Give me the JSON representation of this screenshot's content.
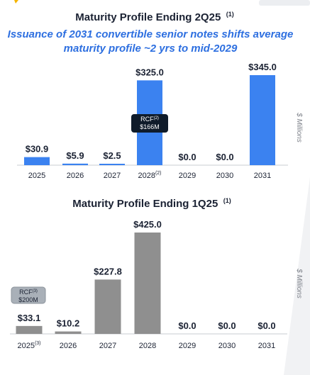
{
  "colors": {
    "bar_2q25": "#3b82f0",
    "bar_1q25": "#8f8f8f",
    "subtitle": "#2d6fe0",
    "rcf_box_dark": "#0f1b2a",
    "rcf_box_light": "#a9b0b8",
    "accent_corner": "#f5b400"
  },
  "chart_data": [
    {
      "type": "bar",
      "title": "Maturity Profile Ending 2Q25",
      "title_footnote": "(1)",
      "subtitle": "Issuance of 2031 convertible senior notes shifts average maturity profile ~2 yrs to mid-2029",
      "ylabel": "$ Millions",
      "categories": [
        "2025",
        "2026",
        "2027",
        "2028",
        "2029",
        "2030",
        "2031"
      ],
      "category_footnotes": {
        "2028": "(2)"
      },
      "values": [
        30.9,
        5.9,
        2.5,
        325.0,
        0.0,
        0.0,
        345.0
      ],
      "value_labels": [
        "$30.9",
        "$5.9",
        "$2.5",
        "$325.0",
        "$0.0",
        "$0.0",
        "$345.0"
      ],
      "ylim": [
        0,
        345
      ],
      "grid": false,
      "annotation": {
        "category": "2028",
        "label": "RCF",
        "footnote": "(2)",
        "amount": "$166M"
      }
    },
    {
      "type": "bar",
      "title": "Maturity Profile Ending 1Q25",
      "title_footnote": "(1)",
      "ylabel": "$ Millions",
      "categories": [
        "2025",
        "2026",
        "2027",
        "2028",
        "2029",
        "2030",
        "2031"
      ],
      "category_footnotes": {
        "2025": "(3)"
      },
      "values": [
        33.1,
        10.2,
        227.8,
        425.0,
        0.0,
        0.0,
        0.0
      ],
      "value_labels": [
        "$33.1",
        "$10.2",
        "$227.8",
        "$425.0",
        "$0.0",
        "$0.0",
        "$0.0"
      ],
      "ylim": [
        0,
        425
      ],
      "grid": false,
      "annotation": {
        "category": "2025",
        "label": "RCF",
        "footnote": "(3)",
        "amount": "$200M"
      }
    }
  ]
}
